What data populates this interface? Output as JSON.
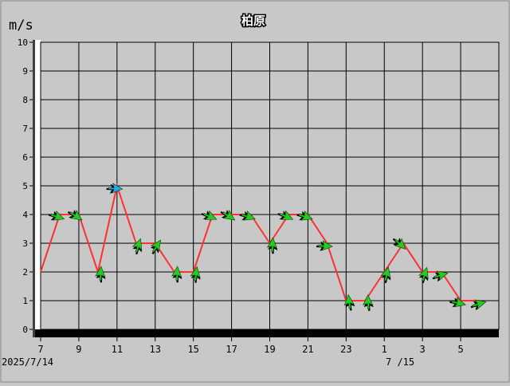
{
  "chart_data": {
    "type": "line",
    "title": "柏原",
    "ylabel": "m/s",
    "ylim": [
      0,
      10
    ],
    "yticks": [
      "0",
      "1",
      "2",
      "3",
      "4",
      "5",
      "6",
      "7",
      "8",
      "9",
      "10"
    ],
    "xtick_labels": [
      "7",
      "9",
      "11",
      "13",
      "15",
      "17",
      "19",
      "21",
      "23",
      "1",
      "3",
      "5"
    ],
    "date_labels": [
      "2025/7/14",
      "7 /15"
    ],
    "x": [
      "7",
      "8",
      "9",
      "10",
      "11",
      "12",
      "13",
      "14",
      "15",
      "16",
      "17",
      "18",
      "19",
      "20",
      "21",
      "22",
      "23",
      "0",
      "1",
      "2",
      "3",
      "4",
      "5",
      "6"
    ],
    "series": [
      {
        "values": [
          2,
          4,
          4,
          2,
          5,
          3,
          3,
          2,
          2,
          4,
          4,
          4,
          3,
          4,
          4,
          3,
          1,
          1,
          2,
          3,
          2,
          2,
          1,
          1
        ]
      }
    ],
    "wind_direction_markers": true,
    "grid": true,
    "colors": {
      "background": "#c8c8c8",
      "plot_background": "#c8c8c8",
      "line": "#ff3030",
      "grid": "#000000",
      "marker": "#22cc22",
      "marker_highlight": "#22aaee",
      "axis": "#000000"
    }
  }
}
